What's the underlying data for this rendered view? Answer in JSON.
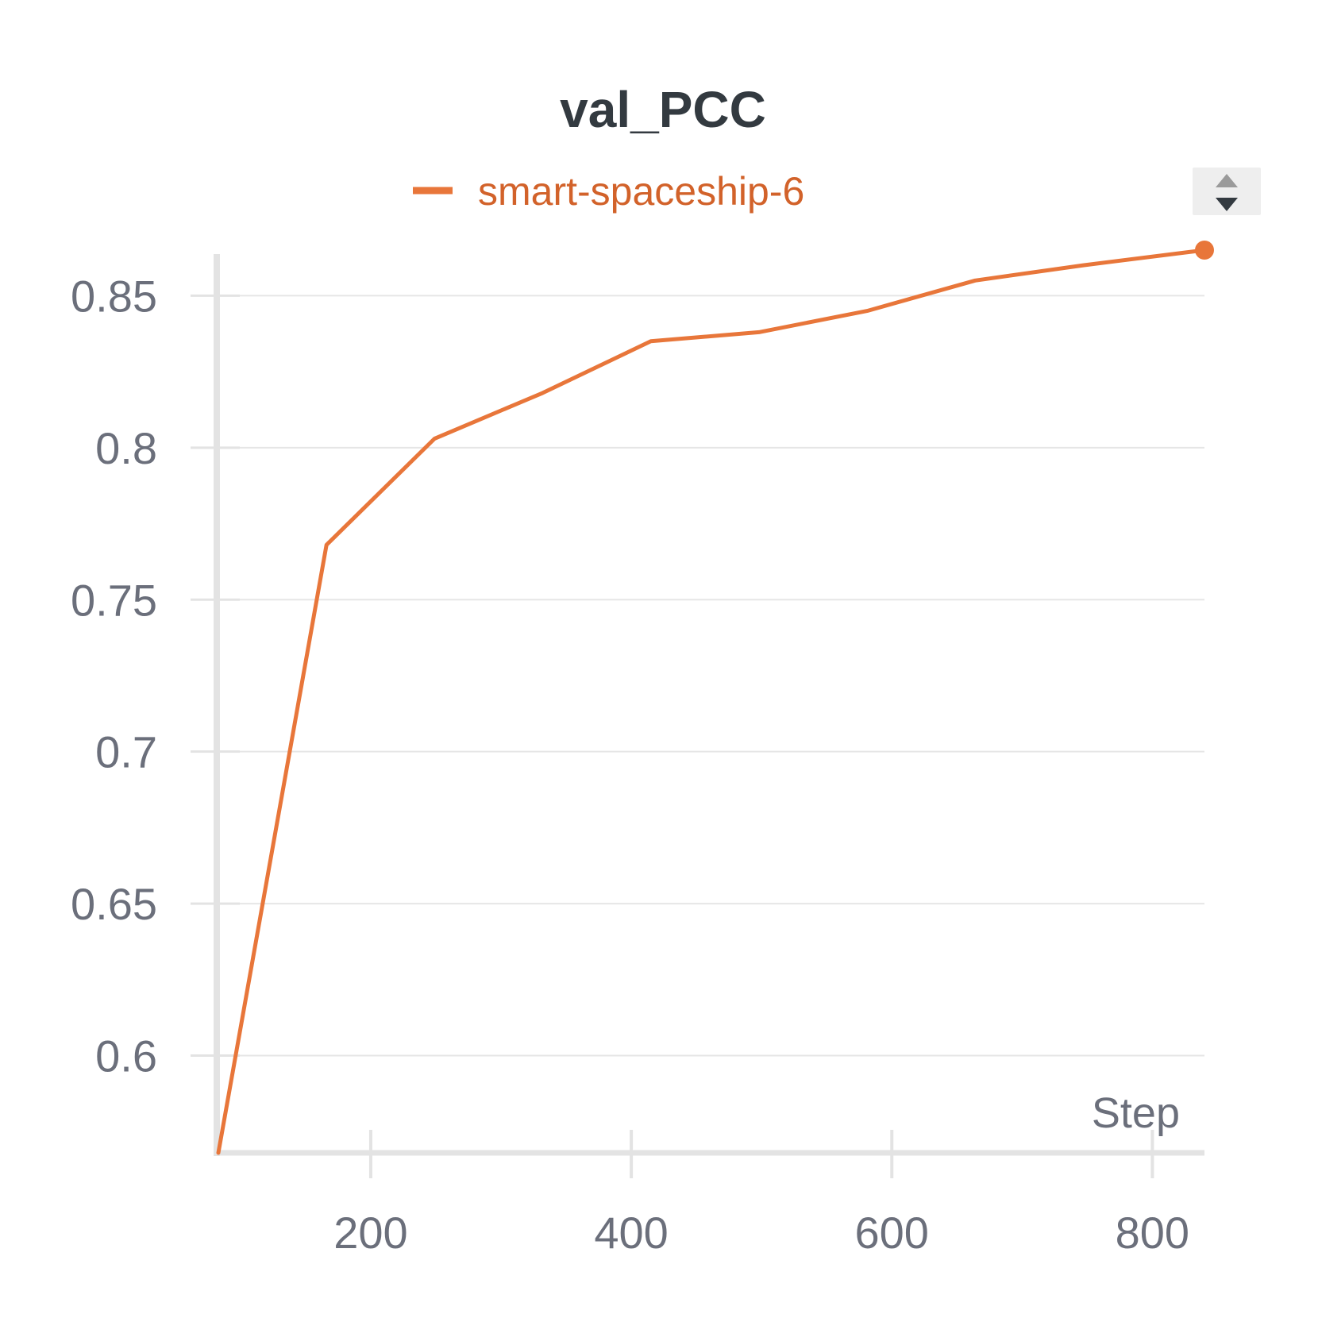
{
  "chart_data": {
    "type": "line",
    "title": "val_PCC",
    "xlabel": "Step",
    "ylabel": "",
    "xlim": [
      83,
      840
    ],
    "ylim": [
      0.568,
      0.865
    ],
    "x_ticks": [
      200,
      400,
      600,
      800
    ],
    "x_tick_labels": [
      "200",
      "400",
      "600",
      "800"
    ],
    "y_ticks": [
      0.6,
      0.65,
      0.7,
      0.75,
      0.8,
      0.85
    ],
    "y_tick_labels": [
      "0.6",
      "0.65",
      "0.7",
      "0.75",
      "0.8",
      "0.85"
    ],
    "grid": true,
    "legend": "top-center",
    "series": [
      {
        "name": "smart-spaceship-6",
        "color": "#e8763a",
        "x": [
          83,
          166,
          249,
          332,
          415,
          498,
          581,
          664,
          747,
          840
        ],
        "y": [
          0.568,
          0.768,
          0.803,
          0.818,
          0.835,
          0.838,
          0.845,
          0.855,
          0.86,
          0.865
        ]
      }
    ]
  },
  "legend_text_color": "#d2622a",
  "sort_control": {
    "icon": "sort-arrows-icon"
  }
}
